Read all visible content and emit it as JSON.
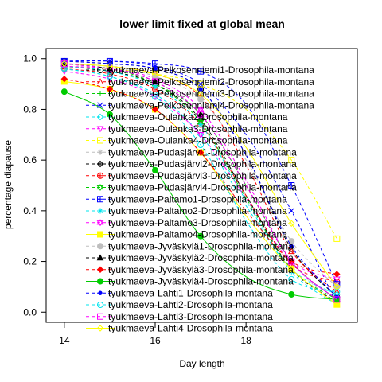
{
  "chart_data": {
    "type": "line",
    "title": "lower limit fixed at global mean",
    "xlabel": "Day length",
    "ylabel": "percentage diapause",
    "xlim": [
      13.6,
      20.45
    ],
    "ylim": [
      -0.04,
      1.04
    ],
    "xticks": [
      14,
      16,
      18
    ],
    "yticks": [
      0.0,
      0.2,
      0.4,
      0.6,
      0.8,
      1.0
    ],
    "grid": false,
    "legend_position": "top-right",
    "fit_x_range": [
      14,
      20
    ],
    "series": [
      {
        "name": "tyukmaeva-Pelkosenniemi1-Drosophila-montana",
        "color": "#000000",
        "marker": "circle-open",
        "dash": "4,3",
        "x": [
          14,
          15,
          16,
          17,
          18,
          19,
          20
        ],
        "y": [
          0.99,
          0.98,
          0.96,
          0.88,
          0.62,
          0.25,
          0.06
        ]
      },
      {
        "name": "tyukmaeva-Pelkosenniemi2-Drosophila-montana",
        "color": "#ff0000",
        "marker": "triangle-open",
        "dash": "4,3",
        "x": [
          14,
          15,
          16,
          17,
          18,
          19,
          20
        ],
        "y": [
          0.98,
          0.97,
          0.94,
          0.85,
          0.58,
          0.24,
          0.08
        ]
      },
      {
        "name": "tyukmaeva-Pelkosenniemi3-Drosophila-montana",
        "color": "#00cc00",
        "marker": "plus",
        "dash": "4,3",
        "x": [
          14,
          15,
          16,
          17,
          18,
          19,
          20
        ],
        "y": [
          0.97,
          0.95,
          0.9,
          0.78,
          0.5,
          0.2,
          0.05
        ]
      },
      {
        "name": "tyukmaeva-Pelkosenniemi4-Drosophila-montana",
        "color": "#0000ff",
        "marker": "cross",
        "dash": "4,3",
        "x": [
          14,
          15,
          16,
          17,
          18,
          19,
          20
        ],
        "y": [
          0.99,
          0.99,
          0.97,
          0.9,
          0.7,
          0.4,
          0.03
        ]
      },
      {
        "name": "tyukmaeva-Oulanka2-Drosophila-montana",
        "color": "#00e5ee",
        "marker": "diamond-open",
        "dash": "4,3",
        "x": [
          14,
          15,
          16,
          17,
          18,
          19,
          20
        ],
        "y": [
          0.96,
          0.93,
          0.86,
          0.7,
          0.42,
          0.17,
          0.07
        ]
      },
      {
        "name": "tyukmaeva-Oulanka3-Drosophila-montana",
        "color": "#ff00ff",
        "marker": "triangle-down-open",
        "dash": "4,3",
        "x": [
          14,
          15,
          16,
          17,
          18,
          19,
          20
        ],
        "y": [
          0.95,
          0.92,
          0.85,
          0.7,
          0.45,
          0.2,
          0.13
        ]
      },
      {
        "name": "tyukmaeva-Oulanka4-Drosophila-montana",
        "color": "#ffff00",
        "marker": "square-open",
        "dash": "4,3",
        "x": [
          14,
          15,
          16,
          17,
          18,
          19,
          20
        ],
        "y": [
          0.97,
          0.96,
          0.94,
          0.9,
          0.8,
          0.6,
          0.29
        ]
      },
      {
        "name": "tyukmaeva-Pudasjärvi1-Drosophila-montana",
        "color": "#bebebe",
        "marker": "asterisk",
        "dash": "4,3",
        "x": [
          14,
          15,
          16,
          17,
          18,
          19,
          20
        ],
        "y": [
          0.98,
          0.96,
          0.91,
          0.78,
          0.5,
          0.2,
          0.03
        ]
      },
      {
        "name": "tyukmaeva-Pudasjärvi2-Drosophila-montana",
        "color": "#000000",
        "marker": "diamond-plus",
        "dash": "4,3",
        "x": [
          14,
          15,
          16,
          17,
          18,
          19,
          20
        ],
        "y": [
          0.97,
          0.95,
          0.9,
          0.76,
          0.46,
          0.17,
          0.04
        ]
      },
      {
        "name": "tyukmaeva-Pudasjärvi3-Drosophila-montana",
        "color": "#ff0000",
        "marker": "circle-plus",
        "dash": "4,3",
        "x": [
          14,
          15,
          16,
          17,
          18,
          19,
          20
        ],
        "y": [
          0.96,
          0.94,
          0.88,
          0.74,
          0.46,
          0.19,
          0.12
        ]
      },
      {
        "name": "tyukmaeva-Pudasjärvi4-Drosophila-montana",
        "color": "#00cc00",
        "marker": "star-open",
        "dash": "4,3",
        "x": [
          14,
          15,
          16,
          17,
          18,
          19,
          20
        ],
        "y": [
          0.98,
          0.96,
          0.9,
          0.75,
          0.45,
          0.17,
          0.05
        ]
      },
      {
        "name": "tyukmaeva-Paltamo1-Drosophila-montana",
        "color": "#0000ff",
        "marker": "square-plus",
        "dash": "4,3",
        "x": [
          14,
          15,
          16,
          17,
          18,
          19,
          20
        ],
        "y": [
          0.99,
          0.99,
          0.98,
          0.95,
          0.82,
          0.5,
          0.11
        ]
      },
      {
        "name": "tyukmaeva-Paltamo2-Drosophila-montana",
        "color": "#00e5ee",
        "marker": "cross-plus",
        "dash": "4,3",
        "x": [
          14,
          15,
          16,
          17,
          18,
          19,
          20
        ],
        "y": [
          0.97,
          0.95,
          0.89,
          0.74,
          0.44,
          0.16,
          0.03
        ]
      },
      {
        "name": "tyukmaeva-Paltamo3-Drosophila-montana",
        "color": "#ff00ff",
        "marker": "star-open",
        "dash": "4,3",
        "x": [
          14,
          15,
          16,
          17,
          18,
          19,
          20
        ],
        "y": [
          0.97,
          0.96,
          0.92,
          0.8,
          0.52,
          0.2,
          0.05
        ]
      },
      {
        "name": "tyukmaeva-Paltamo4-Drosophila-montana",
        "color": "#ffff00",
        "marker": "square",
        "dash": "",
        "x": [
          14,
          15,
          16,
          17,
          18,
          19,
          20
        ],
        "y": [
          0.91,
          0.88,
          0.8,
          0.63,
          0.38,
          0.17,
          0.03
        ]
      },
      {
        "name": "tyukmaeva-Jyväskylä1-Drosophila-montana",
        "color": "#bebebe",
        "marker": "circle",
        "dash": "4,3",
        "x": [
          14,
          15,
          16,
          17,
          18,
          19,
          20
        ],
        "y": [
          0.98,
          0.97,
          0.93,
          0.84,
          0.6,
          0.28,
          0.1
        ]
      },
      {
        "name": "tyukmaeva-Jyväskylä2-Drosophila-montana",
        "color": "#000000",
        "marker": "triangle",
        "dash": "4,3",
        "x": [
          14,
          15,
          16,
          17,
          18,
          19,
          20
        ],
        "y": [
          0.98,
          0.96,
          0.91,
          0.78,
          0.5,
          0.2,
          0.05
        ]
      },
      {
        "name": "tyukmaeva-Jyväskylä3-Drosophila-montana",
        "color": "#ff0000",
        "marker": "diamond",
        "dash": "4,3",
        "x": [
          14,
          15,
          16,
          17,
          18,
          19,
          20
        ],
        "y": [
          0.92,
          0.88,
          0.8,
          0.63,
          0.4,
          0.2,
          0.15
        ]
      },
      {
        "name": "tyukmaeva-Jyväskylä4-Drosophila-montana",
        "color": "#00cc00",
        "marker": "circle",
        "dash": "",
        "x": [
          14,
          15,
          16,
          17,
          18,
          19,
          20
        ],
        "y": [
          0.87,
          0.78,
          0.56,
          0.3,
          0.14,
          0.07,
          0.05
        ]
      },
      {
        "name": "tyukmaeva-Lahti1-Drosophila-montana",
        "color": "#0000ff",
        "marker": "circle-small",
        "dash": "4,3",
        "x": [
          14,
          15,
          16,
          17,
          18,
          19,
          20
        ],
        "y": [
          0.99,
          0.98,
          0.96,
          0.88,
          0.62,
          0.26,
          0.06
        ]
      },
      {
        "name": "tyukmaeva-Lahti2-Drosophila-montana",
        "color": "#00e5ee",
        "marker": "circle-open",
        "dash": "4,3",
        "x": [
          14,
          15,
          16,
          17,
          18,
          19,
          20
        ],
        "y": [
          0.96,
          0.93,
          0.85,
          0.66,
          0.36,
          0.13,
          0.08
        ]
      },
      {
        "name": "tyukmaeva-Lahti3-Drosophila-montana",
        "color": "#ff00ff",
        "marker": "square-open",
        "dash": "4,3",
        "x": [
          14,
          15,
          16,
          17,
          18,
          19,
          20
        ],
        "y": [
          0.98,
          0.96,
          0.91,
          0.78,
          0.5,
          0.2,
          0.05
        ]
      },
      {
        "name": "tyukmaeva-Lahti4-Drosophila-montana",
        "color": "#ffff00",
        "marker": "diamond-open",
        "dash": "",
        "x": [
          14,
          15,
          16,
          17,
          18,
          19,
          20
        ],
        "y": [
          0.98,
          0.97,
          0.94,
          0.86,
          0.65,
          0.35,
          0.1
        ]
      }
    ]
  }
}
